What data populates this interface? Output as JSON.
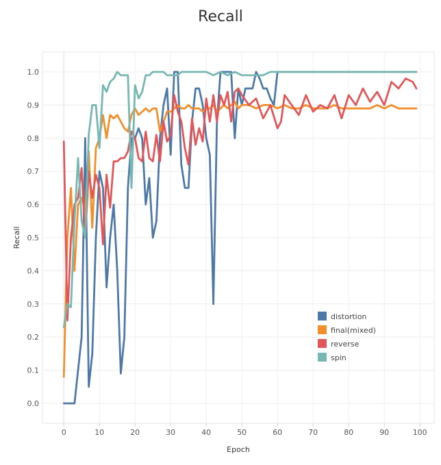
{
  "chart_data": {
    "type": "line",
    "title": "Recall",
    "xlabel": "Epoch",
    "ylabel": "Recall",
    "xlim": [
      -6,
      104
    ],
    "ylim": [
      -0.06,
      1.06
    ],
    "xticks": [
      0,
      10,
      20,
      30,
      40,
      50,
      60,
      70,
      80,
      90,
      100
    ],
    "yticks": [
      0.0,
      0.1,
      0.2,
      0.3,
      0.4,
      0.5,
      0.6,
      0.7,
      0.8,
      0.9,
      1.0
    ],
    "xtick_labels": [
      "0",
      "10",
      "20",
      "30",
      "40",
      "50",
      "60",
      "70",
      "80",
      "90",
      "100"
    ],
    "ytick_labels": [
      "0.0",
      "0.1",
      "0.2",
      "0.3",
      "0.4",
      "0.5",
      "0.6",
      "0.7",
      "0.8",
      "0.9",
      "1.0"
    ],
    "grid": true,
    "legend_position": "bottom-right",
    "series": [
      {
        "name": "distortion",
        "color": "#4e79a7",
        "x": [
          0,
          1,
          2,
          3,
          4,
          5,
          6,
          7,
          8,
          9,
          10,
          11,
          12,
          13,
          14,
          15,
          16,
          17,
          18,
          19,
          20,
          21,
          22,
          23,
          24,
          25,
          26,
          27,
          28,
          29,
          30,
          31,
          32,
          33,
          34,
          35,
          36,
          37,
          38,
          39,
          40,
          41,
          42,
          43,
          44,
          45,
          46,
          47,
          48,
          49,
          50,
          51,
          52,
          53,
          54,
          55,
          56,
          57,
          58,
          59,
          60,
          61,
          62,
          63,
          64,
          65,
          70,
          75,
          80,
          85,
          90,
          95,
          99
        ],
        "y": [
          0,
          0,
          0,
          0,
          0.1,
          0.2,
          0.8,
          0.05,
          0.15,
          0.5,
          0.7,
          0.65,
          0.35,
          0.5,
          0.6,
          0.4,
          0.09,
          0.2,
          0.65,
          0.8,
          0.8,
          0.83,
          0.8,
          0.6,
          0.68,
          0.5,
          0.55,
          0.8,
          0.9,
          0.95,
          0.75,
          1.0,
          1.0,
          0.72,
          0.65,
          0.65,
          0.85,
          0.95,
          0.95,
          0.9,
          0.8,
          0.75,
          0.3,
          0.85,
          1.0,
          1.0,
          1.0,
          1.0,
          0.8,
          0.95,
          0.9,
          0.95,
          0.95,
          0.95,
          1.0,
          0.98,
          0.95,
          0.95,
          0.92,
          0.9,
          1.0,
          1.0,
          1.0,
          1.0,
          1.0,
          1.0,
          1.0,
          1.0,
          1.0,
          1.0,
          1.0,
          1.0,
          1.0
        ]
      },
      {
        "name": "final(mixed)",
        "color": "#f28e2b",
        "x": [
          0,
          1,
          2,
          3,
          4,
          5,
          6,
          7,
          8,
          9,
          10,
          11,
          12,
          13,
          14,
          15,
          16,
          17,
          18,
          19,
          20,
          21,
          22,
          23,
          24,
          25,
          26,
          27,
          28,
          29,
          30,
          31,
          32,
          33,
          34,
          35,
          36,
          37,
          38,
          39,
          40,
          41,
          42,
          43,
          44,
          45,
          46,
          47,
          48,
          49,
          50,
          52,
          54,
          56,
          58,
          60,
          62,
          64,
          66,
          68,
          70,
          72,
          74,
          76,
          78,
          80,
          82,
          84,
          86,
          88,
          90,
          92,
          94,
          96,
          98,
          99
        ],
        "y": [
          0.08,
          0.5,
          0.65,
          0.4,
          0.6,
          0.62,
          0.58,
          0.76,
          0.53,
          0.77,
          0.8,
          0.87,
          0.8,
          0.87,
          0.86,
          0.87,
          0.85,
          0.83,
          0.82,
          0.87,
          0.89,
          0.87,
          0.88,
          0.89,
          0.88,
          0.89,
          0.89,
          0.82,
          0.85,
          0.88,
          0.88,
          0.89,
          0.9,
          0.89,
          0.89,
          0.9,
          0.89,
          0.89,
          0.89,
          0.88,
          0.89,
          0.89,
          0.9,
          0.88,
          0.89,
          0.9,
          0.89,
          0.9,
          0.91,
          0.89,
          0.9,
          0.9,
          0.89,
          0.9,
          0.9,
          0.89,
          0.9,
          0.89,
          0.89,
          0.9,
          0.89,
          0.89,
          0.89,
          0.9,
          0.89,
          0.89,
          0.89,
          0.89,
          0.89,
          0.9,
          0.89,
          0.9,
          0.89,
          0.89,
          0.89,
          0.89
        ]
      },
      {
        "name": "reverse",
        "color": "#e15759",
        "x": [
          0,
          1,
          2,
          3,
          4,
          5,
          6,
          7,
          8,
          9,
          10,
          11,
          12,
          13,
          14,
          15,
          16,
          17,
          18,
          19,
          20,
          21,
          22,
          23,
          24,
          25,
          26,
          27,
          28,
          29,
          30,
          31,
          32,
          33,
          34,
          35,
          36,
          37,
          38,
          39,
          40,
          41,
          42,
          43,
          44,
          45,
          46,
          47,
          48,
          49,
          50,
          52,
          54,
          56,
          58,
          60,
          61,
          62,
          64,
          66,
          68,
          70,
          72,
          74,
          76,
          78,
          80,
          82,
          84,
          86,
          88,
          90,
          92,
          94,
          96,
          98,
          99
        ],
        "y": [
          0.79,
          0.25,
          0.5,
          0.6,
          0.62,
          0.71,
          0.5,
          0.7,
          0.62,
          0.69,
          0.65,
          0.48,
          0.69,
          0.59,
          0.73,
          0.73,
          0.74,
          0.74,
          0.76,
          0.82,
          0.8,
          0.74,
          0.73,
          0.82,
          0.74,
          0.73,
          0.81,
          0.73,
          0.85,
          0.79,
          0.81,
          0.93,
          0.88,
          0.85,
          0.77,
          0.72,
          0.86,
          0.78,
          0.83,
          0.79,
          0.92,
          0.85,
          0.93,
          0.85,
          0.93,
          0.9,
          0.94,
          0.85,
          0.94,
          0.95,
          0.93,
          0.9,
          0.92,
          0.86,
          0.9,
          0.83,
          0.85,
          0.93,
          0.9,
          0.87,
          0.93,
          0.88,
          0.9,
          0.89,
          0.93,
          0.86,
          0.93,
          0.9,
          0.95,
          0.91,
          0.94,
          0.9,
          0.97,
          0.95,
          0.98,
          0.97,
          0.95
        ]
      },
      {
        "name": "spin",
        "color": "#76b7b2",
        "x": [
          0,
          1,
          2,
          3,
          4,
          5,
          6,
          7,
          8,
          9,
          10,
          11,
          12,
          13,
          14,
          15,
          16,
          17,
          18,
          19,
          20,
          21,
          22,
          23,
          24,
          25,
          26,
          27,
          28,
          29,
          30,
          31,
          32,
          33,
          34,
          35,
          36,
          38,
          40,
          42,
          44,
          46,
          48,
          50,
          52,
          54,
          56,
          58,
          60,
          65,
          70,
          75,
          80,
          85,
          90,
          95,
          99
        ],
        "y": [
          0.23,
          0.3,
          0.29,
          0.55,
          0.74,
          0.55,
          0.5,
          0.81,
          0.9,
          0.9,
          0.77,
          0.96,
          0.94,
          0.97,
          0.98,
          1.0,
          0.99,
          0.99,
          0.99,
          0.65,
          0.96,
          0.92,
          0.94,
          0.99,
          0.99,
          1.0,
          1.0,
          1.0,
          1.0,
          0.99,
          0.99,
          0.99,
          0.99,
          1.0,
          1.0,
          1.0,
          1.0,
          1.0,
          1.0,
          0.99,
          1.0,
          0.99,
          1.0,
          0.99,
          0.99,
          0.99,
          0.99,
          1.0,
          1.0,
          1.0,
          1.0,
          1.0,
          1.0,
          1.0,
          1.0,
          1.0,
          1.0
        ]
      }
    ]
  }
}
